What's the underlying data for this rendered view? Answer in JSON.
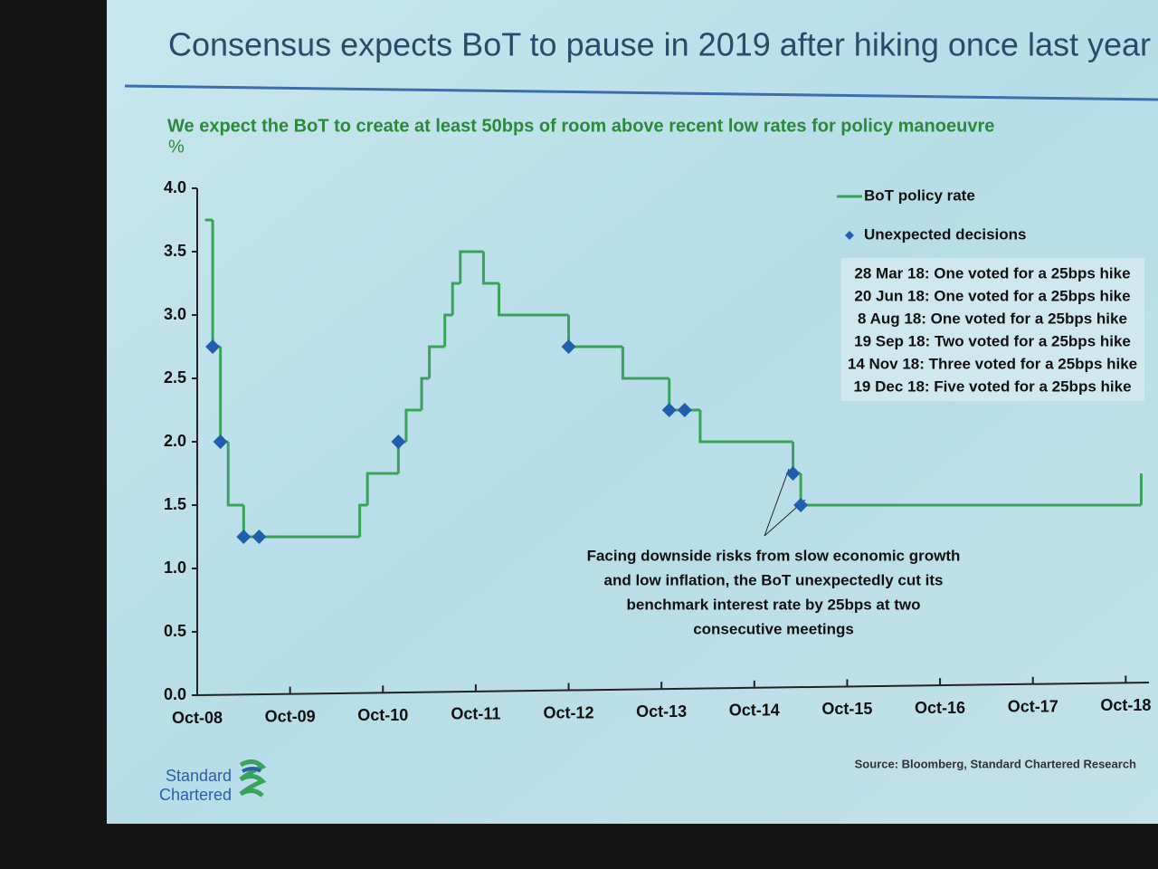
{
  "chart_data": {
    "type": "step",
    "title": "Consensus expects BoT to pause in 2019 after hiking once last year",
    "subtitle": "We expect the BoT to create at least 50bps of room above recent low rates for policy manoeuvre",
    "y_label": "%",
    "xlim": [
      "2008-10",
      "2019-01"
    ],
    "xticks": [
      {
        "value": "2008-10",
        "label": "Oct-08"
      },
      {
        "value": "2009-10",
        "label": "Oct-09"
      },
      {
        "value": "2010-10",
        "label": "Oct-10"
      },
      {
        "value": "2011-10",
        "label": "Oct-11"
      },
      {
        "value": "2012-10",
        "label": "Oct-12"
      },
      {
        "value": "2013-10",
        "label": "Oct-13"
      },
      {
        "value": "2014-10",
        "label": "Oct-14"
      },
      {
        "value": "2015-10",
        "label": "Oct-15"
      },
      {
        "value": "2016-10",
        "label": "Oct-16"
      },
      {
        "value": "2017-10",
        "label": "Oct-17"
      },
      {
        "value": "2018-10",
        "label": "Oct-18"
      }
    ],
    "ylim": [
      0,
      4
    ],
    "yticks": [
      {
        "value": 0,
        "label": "0.0"
      },
      0.5,
      {
        "value": 1,
        "label": "1.0"
      },
      1.5,
      {
        "value": 2,
        "label": "2.0"
      },
      2.5,
      {
        "value": 3,
        "label": "3.0"
      },
      3.5,
      {
        "value": 4,
        "label": "4.0"
      }
    ],
    "grid": false,
    "series": [
      {
        "name": "BoT policy rate",
        "color": "#3aa35a",
        "line": "step",
        "x": [
          "2008-11",
          "2008-12",
          "2009-01",
          "2009-02",
          "2009-04",
          "2010-07",
          "2010-08",
          "2010-12",
          "2011-01",
          "2011-03",
          "2011-04",
          "2011-06",
          "2011-07",
          "2011-08",
          "2011-11",
          "2012-01",
          "2012-10",
          "2013-05",
          "2013-11",
          "2014-03",
          "2015-03",
          "2015-04",
          "2018-12"
        ],
        "values": [
          3.75,
          2.75,
          2.0,
          1.5,
          1.25,
          1.5,
          1.75,
          2.0,
          2.25,
          2.5,
          2.75,
          3.0,
          3.25,
          3.5,
          3.25,
          3.0,
          2.75,
          2.5,
          2.25,
          2.0,
          1.75,
          1.5,
          1.75
        ]
      },
      {
        "name": "Unexpected decisions",
        "color": "#1f5fae",
        "marker": "diamond",
        "x": [
          "2008-12",
          "2009-01",
          "2009-04",
          "2009-06",
          "2010-12",
          "2012-10",
          "2013-11",
          "2014-01",
          "2015-03",
          "2015-04"
        ],
        "values": [
          2.75,
          2.0,
          1.25,
          1.25,
          2.0,
          2.75,
          2.25,
          2.25,
          1.75,
          1.5
        ]
      }
    ],
    "legend": "top-right",
    "notes": [
      "28 Mar 18: One voted for a 25bps hike",
      "20 Jun 18: One voted for a 25bps hike",
      "8 Aug 18: One voted for a 25bps hike",
      "19 Sep 18: Two voted for a 25bps hike",
      "14 Nov 18: Three voted for a 25bps hike",
      "19 Dec 18: Five voted for a 25bps hike"
    ],
    "annotation": [
      "Facing downside risks from slow economic growth",
      "and low inflation, the BoT unexpectedly cut its",
      "benchmark interest rate by 25bps at two",
      "consecutive meetings"
    ],
    "source": "Source: Bloomberg, Standard Chartered Research"
  },
  "logo": [
    "Standard",
    "Chartered"
  ]
}
